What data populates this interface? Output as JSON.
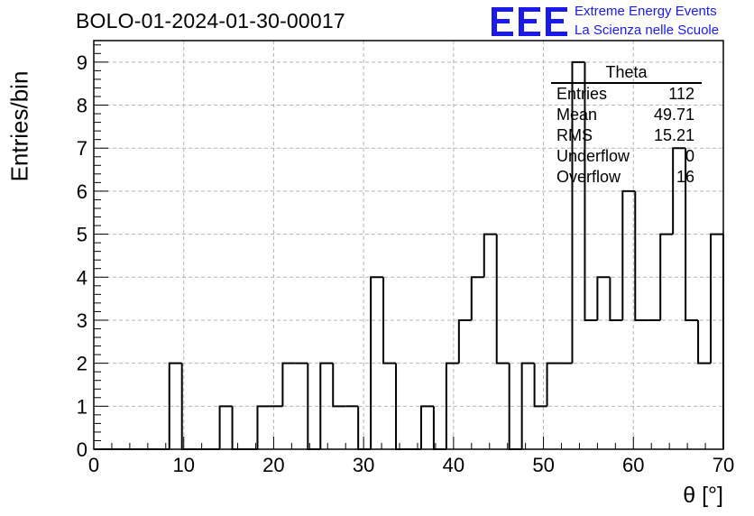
{
  "header": {
    "title": "BOLO-01-2024-01-30-00017",
    "logo_text": "EEE",
    "logo_line1": "Extreme Energy Events",
    "logo_line2": "La Scienza nelle Scuole"
  },
  "stats": {
    "name": "Theta",
    "rows": [
      {
        "label": "Entries",
        "value": "112"
      },
      {
        "label": "Mean",
        "value": "49.71"
      },
      {
        "label": "RMS",
        "value": "15.21"
      },
      {
        "label": "Underflow",
        "value": "0"
      },
      {
        "label": "Overflow",
        "value": "16"
      }
    ]
  },
  "colors": {
    "logo": "#1a1aee",
    "line": "#000000",
    "grid": "#b4b4b4"
  },
  "chart_data": {
    "type": "histogram",
    "title": "BOLO-01-2024-01-30-00017",
    "xlabel": "θ [°]",
    "ylabel": "Entries/bin",
    "xlim": [
      0,
      70
    ],
    "ylim": [
      0,
      9.5
    ],
    "bin_width": 1.4,
    "x_ticks": [
      0,
      10,
      20,
      30,
      40,
      50,
      60,
      70
    ],
    "y_ticks": [
      0,
      1,
      2,
      3,
      4,
      5,
      6,
      7,
      8,
      9
    ],
    "grid": true,
    "values": [
      0,
      0,
      0,
      0,
      0,
      0,
      2,
      0,
      0,
      0,
      1,
      0,
      0,
      1,
      1,
      2,
      2,
      0,
      2,
      1,
      1,
      0,
      4,
      2,
      0,
      0,
      1,
      0,
      2,
      3,
      4,
      5,
      2,
      0,
      2,
      1,
      2,
      2,
      9,
      3,
      4,
      3,
      6,
      3,
      3,
      5,
      7,
      3,
      2,
      5
    ]
  }
}
